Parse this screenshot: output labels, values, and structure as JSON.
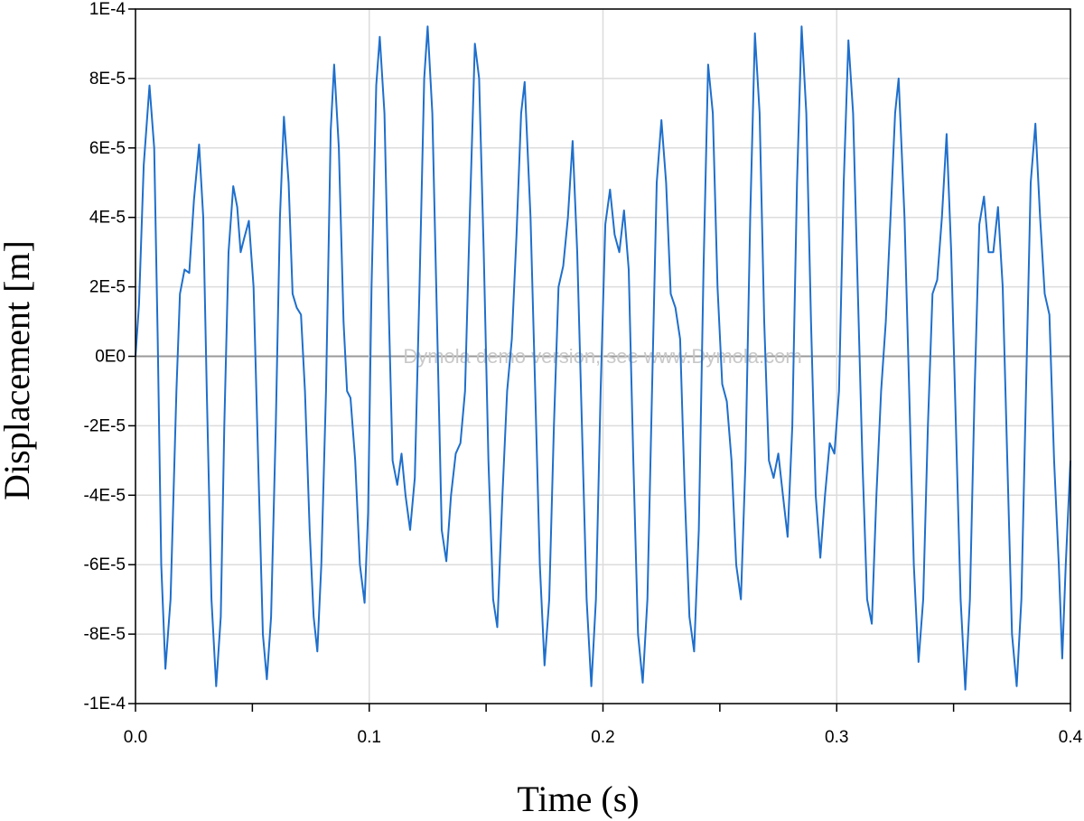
{
  "chart_data": {
    "type": "line",
    "title": "",
    "xlabel": "Time (s)",
    "ylabel": "Displacement [m]",
    "xlim": [
      0,
      0.4
    ],
    "ylim": [
      -0.0001,
      0.0001
    ],
    "grid": true,
    "x_ticks": [
      {
        "value": 0.0,
        "label": "0.0"
      },
      {
        "value": 0.1,
        "label": "0.1"
      },
      {
        "value": 0.2,
        "label": "0.2"
      },
      {
        "value": 0.3,
        "label": "0.3"
      },
      {
        "value": 0.4,
        "label": "0.4"
      }
    ],
    "y_ticks": [
      {
        "value": 0.0001,
        "label": "1E-4"
      },
      {
        "value": 8e-05,
        "label": "8E-5"
      },
      {
        "value": 6e-05,
        "label": "6E-5"
      },
      {
        "value": 4e-05,
        "label": "4E-5"
      },
      {
        "value": 2e-05,
        "label": "2E-5"
      },
      {
        "value": 0,
        "label": "0E0"
      },
      {
        "value": -2e-05,
        "label": "-2E-5"
      },
      {
        "value": -4e-05,
        "label": "-4E-5"
      },
      {
        "value": -6e-05,
        "label": "-6E-5"
      },
      {
        "value": -8e-05,
        "label": "-8E-5"
      },
      {
        "value": -0.0001,
        "label": "-1E-4"
      }
    ],
    "annotation": "Dymola demo version, see www.Dymola.com",
    "series": [
      {
        "name": "Displacement",
        "color": "#1f6fcc",
        "points": [
          [
            0.0,
            0
          ],
          [
            0.0015,
            1.5e-05
          ],
          [
            0.0035,
            5.5e-05
          ],
          [
            0.006,
            7.8e-05
          ],
          [
            0.008,
            6e-05
          ],
          [
            0.0095,
            5e-06
          ],
          [
            0.011,
            -6e-05
          ],
          [
            0.0128,
            -9e-05
          ],
          [
            0.015,
            -7e-05
          ],
          [
            0.0175,
            -1e-05
          ],
          [
            0.019,
            1.8e-05
          ],
          [
            0.021,
            2.5e-05
          ],
          [
            0.023,
            2.4e-05
          ],
          [
            0.025,
            4.5e-05
          ],
          [
            0.0272,
            6.1e-05
          ],
          [
            0.029,
            4e-05
          ],
          [
            0.0305,
            -1e-05
          ],
          [
            0.0325,
            -7e-05
          ],
          [
            0.0345,
            -9.5e-05
          ],
          [
            0.0365,
            -7.5e-05
          ],
          [
            0.038,
            -2e-05
          ],
          [
            0.0398,
            3e-05
          ],
          [
            0.0418,
            4.9e-05
          ],
          [
            0.0435,
            4.3e-05
          ],
          [
            0.045,
            3e-05
          ],
          [
            0.0465,
            3.4e-05
          ],
          [
            0.0485,
            3.9e-05
          ],
          [
            0.0505,
            2e-05
          ],
          [
            0.0525,
            -3e-05
          ],
          [
            0.0545,
            -8e-05
          ],
          [
            0.0562,
            -9.3e-05
          ],
          [
            0.058,
            -7.5e-05
          ],
          [
            0.06,
            -2e-05
          ],
          [
            0.0618,
            4e-05
          ],
          [
            0.0635,
            6.9e-05
          ],
          [
            0.0655,
            5e-05
          ],
          [
            0.0672,
            1.8e-05
          ],
          [
            0.069,
            1.4e-05
          ],
          [
            0.0708,
            1.2e-05
          ],
          [
            0.0725,
            -1e-05
          ],
          [
            0.0745,
            -5e-05
          ],
          [
            0.0762,
            -7.5e-05
          ],
          [
            0.0778,
            -8.5e-05
          ],
          [
            0.0795,
            -6e-05
          ],
          [
            0.0815,
            -1e-05
          ],
          [
            0.0835,
            6.5e-05
          ],
          [
            0.085,
            8.4e-05
          ],
          [
            0.087,
            6e-05
          ],
          [
            0.089,
            1e-05
          ],
          [
            0.0905,
            -1e-05
          ],
          [
            0.092,
            -1.2e-05
          ],
          [
            0.094,
            -3e-05
          ],
          [
            0.096,
            -6e-05
          ],
          [
            0.098,
            -7.1e-05
          ],
          [
            0.0995,
            -4.5e-05
          ],
          [
            0.101,
            2e-05
          ],
          [
            0.103,
            7.8e-05
          ],
          [
            0.1045,
            9.2e-05
          ],
          [
            0.1065,
            7e-05
          ],
          [
            0.1085,
            1e-05
          ],
          [
            0.11,
            -3e-05
          ],
          [
            0.112,
            -3.7e-05
          ],
          [
            0.1138,
            -2.8e-05
          ],
          [
            0.1155,
            -4e-05
          ],
          [
            0.1175,
            -5e-05
          ],
          [
            0.1195,
            -3.5e-05
          ],
          [
            0.1215,
            2e-05
          ],
          [
            0.1235,
            8e-05
          ],
          [
            0.125,
            9.5e-05
          ],
          [
            0.127,
            7e-05
          ],
          [
            0.129,
            1e-05
          ],
          [
            0.131,
            -5e-05
          ],
          [
            0.133,
            -5.9e-05
          ],
          [
            0.135,
            -4e-05
          ],
          [
            0.137,
            -2.8e-05
          ],
          [
            0.139,
            -2.5e-05
          ],
          [
            0.141,
            -1e-05
          ],
          [
            0.143,
            4e-05
          ],
          [
            0.1452,
            9e-05
          ],
          [
            0.147,
            8e-05
          ],
          [
            0.149,
            3e-05
          ],
          [
            0.151,
            -3e-05
          ],
          [
            0.153,
            -7e-05
          ],
          [
            0.1548,
            -7.8e-05
          ],
          [
            0.157,
            -4e-05
          ],
          [
            0.159,
            -1e-05
          ],
          [
            0.161,
            5e-06
          ],
          [
            0.163,
            3.5e-05
          ],
          [
            0.165,
            7e-05
          ],
          [
            0.1665,
            7.9e-05
          ],
          [
            0.169,
            4e-05
          ],
          [
            0.171,
            -1e-05
          ],
          [
            0.173,
            -6e-05
          ],
          [
            0.175,
            -8.9e-05
          ],
          [
            0.177,
            -7e-05
          ],
          [
            0.179,
            -2e-05
          ],
          [
            0.181,
            2e-05
          ],
          [
            0.183,
            2.6e-05
          ],
          [
            0.185,
            4e-05
          ],
          [
            0.187,
            6.2e-05
          ],
          [
            0.189,
            3e-05
          ],
          [
            0.191,
            -2e-05
          ],
          [
            0.193,
            -7e-05
          ],
          [
            0.195,
            -9.5e-05
          ],
          [
            0.197,
            -7e-05
          ],
          [
            0.199,
            -1e-05
          ],
          [
            0.201,
            3.8e-05
          ],
          [
            0.203,
            4.8e-05
          ],
          [
            0.205,
            3.5e-05
          ],
          [
            0.207,
            3e-05
          ],
          [
            0.209,
            4.2e-05
          ],
          [
            0.211,
            2.5e-05
          ],
          [
            0.213,
            -3e-05
          ],
          [
            0.215,
            -8e-05
          ],
          [
            0.217,
            -9.4e-05
          ],
          [
            0.219,
            -7e-05
          ],
          [
            0.221,
            -1e-05
          ],
          [
            0.223,
            5e-05
          ],
          [
            0.225,
            6.8e-05
          ],
          [
            0.227,
            5e-05
          ],
          [
            0.229,
            1.8e-05
          ],
          [
            0.231,
            1.4e-05
          ],
          [
            0.233,
            5e-06
          ],
          [
            0.235,
            -4e-05
          ],
          [
            0.237,
            -7.5e-05
          ],
          [
            0.239,
            -8.5e-05
          ],
          [
            0.241,
            -5e-05
          ],
          [
            0.243,
            2.5e-05
          ],
          [
            0.245,
            8.4e-05
          ],
          [
            0.247,
            7e-05
          ],
          [
            0.249,
            2e-05
          ],
          [
            0.251,
            -8e-06
          ],
          [
            0.253,
            -1.3e-05
          ],
          [
            0.255,
            -3e-05
          ],
          [
            0.257,
            -6e-05
          ],
          [
            0.259,
            -7e-05
          ],
          [
            0.261,
            -3e-05
          ],
          [
            0.263,
            4e-05
          ],
          [
            0.265,
            9.3e-05
          ],
          [
            0.267,
            7e-05
          ],
          [
            0.269,
            1e-05
          ],
          [
            0.271,
            -3e-05
          ],
          [
            0.273,
            -3.5e-05
          ],
          [
            0.275,
            -2.8e-05
          ],
          [
            0.277,
            -4e-05
          ],
          [
            0.279,
            -5.2e-05
          ],
          [
            0.281,
            -2e-05
          ],
          [
            0.283,
            5e-05
          ],
          [
            0.285,
            9.5e-05
          ],
          [
            0.287,
            7e-05
          ],
          [
            0.289,
            1e-05
          ],
          [
            0.291,
            -4e-05
          ],
          [
            0.293,
            -5.8e-05
          ],
          [
            0.295,
            -4e-05
          ],
          [
            0.297,
            -2.5e-05
          ],
          [
            0.299,
            -2.8e-05
          ],
          [
            0.301,
            -1e-05
          ],
          [
            0.303,
            5e-05
          ],
          [
            0.305,
            9.1e-05
          ],
          [
            0.307,
            7e-05
          ],
          [
            0.309,
            2e-05
          ],
          [
            0.311,
            -3e-05
          ],
          [
            0.313,
            -7e-05
          ],
          [
            0.315,
            -7.7e-05
          ],
          [
            0.317,
            -4e-05
          ],
          [
            0.319,
            -1e-05
          ],
          [
            0.321,
            1e-05
          ],
          [
            0.323,
            4e-05
          ],
          [
            0.325,
            7e-05
          ],
          [
            0.3265,
            8e-05
          ],
          [
            0.329,
            4e-05
          ],
          [
            0.331,
            -1e-05
          ],
          [
            0.333,
            -6e-05
          ],
          [
            0.335,
            -8.8e-05
          ],
          [
            0.337,
            -7e-05
          ],
          [
            0.339,
            -2e-05
          ],
          [
            0.341,
            1.8e-05
          ],
          [
            0.343,
            2.2e-05
          ],
          [
            0.345,
            4e-05
          ],
          [
            0.347,
            6.4e-05
          ],
          [
            0.349,
            3e-05
          ],
          [
            0.351,
            -2e-05
          ],
          [
            0.353,
            -7e-05
          ],
          [
            0.355,
            -9.6e-05
          ],
          [
            0.357,
            -7e-05
          ],
          [
            0.359,
            -1e-05
          ],
          [
            0.361,
            3.8e-05
          ],
          [
            0.363,
            4.6e-05
          ],
          [
            0.365,
            3e-05
          ],
          [
            0.367,
            3e-05
          ],
          [
            0.369,
            4.3e-05
          ],
          [
            0.371,
            2e-05
          ],
          [
            0.373,
            -3e-05
          ],
          [
            0.375,
            -8e-05
          ],
          [
            0.377,
            -9.5e-05
          ],
          [
            0.379,
            -7e-05
          ],
          [
            0.381,
            -1e-05
          ],
          [
            0.383,
            5e-05
          ],
          [
            0.385,
            6.7e-05
          ],
          [
            0.387,
            4e-05
          ],
          [
            0.389,
            1.8e-05
          ],
          [
            0.391,
            1.2e-05
          ],
          [
            0.393,
            -3e-05
          ],
          [
            0.395,
            -6e-05
          ],
          [
            0.3965,
            -8.7e-05
          ],
          [
            0.398,
            -6e-05
          ],
          [
            0.4,
            -3e-05
          ]
        ]
      }
    ]
  }
}
